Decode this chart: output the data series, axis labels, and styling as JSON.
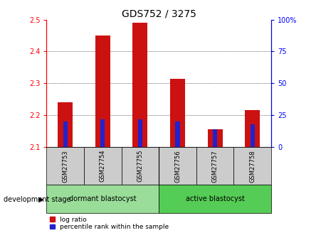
{
  "title": "GDS752 / 3275",
  "samples": [
    "GSM27753",
    "GSM27754",
    "GSM27755",
    "GSM27756",
    "GSM27757",
    "GSM27758"
  ],
  "log_ratio": [
    2.24,
    2.45,
    2.49,
    2.315,
    2.155,
    2.215
  ],
  "log_ratio_base": 2.1,
  "percentile_rank": [
    20,
    22,
    22,
    20,
    14,
    18
  ],
  "ylim_left": [
    2.1,
    2.5
  ],
  "yticks_left": [
    2.1,
    2.2,
    2.3,
    2.4,
    2.5
  ],
  "yticks_right": [
    0,
    25,
    50,
    75,
    100
  ],
  "groups": [
    {
      "label": "dormant blastocyst",
      "indices": [
        0,
        1,
        2
      ],
      "color": "#99dd99"
    },
    {
      "label": "active blastocyst",
      "indices": [
        3,
        4,
        5
      ],
      "color": "#55cc55"
    }
  ],
  "bar_color_red": "#cc1111",
  "bar_color_blue": "#2222cc",
  "bar_width": 0.4,
  "blue_bar_width": 0.12,
  "tick_area_color": "#cccccc",
  "group_label_x": "development stage",
  "legend_red": "log ratio",
  "legend_blue": "percentile rank within the sample",
  "title_fontsize": 10,
  "tick_fontsize": 7,
  "sample_fontsize": 6,
  "group_fontsize": 7,
  "legend_fontsize": 6.5
}
